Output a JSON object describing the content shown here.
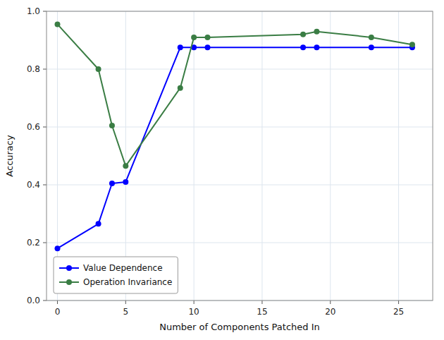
{
  "chart_data": {
    "type": "line",
    "xlabel": "Number of Components Patched In",
    "ylabel": "Accuracy",
    "x": [
      0,
      3,
      4,
      5,
      9,
      10,
      11,
      18,
      19,
      23,
      26
    ],
    "series": [
      {
        "name": "Value Dependence",
        "color": "#0000ff",
        "marker": "circle",
        "values": [
          0.18,
          0.265,
          0.405,
          0.41,
          0.875,
          0.875,
          0.875,
          0.875,
          0.875,
          0.875,
          0.875
        ]
      },
      {
        "name": "Operation Invariance",
        "color": "#3a7d44",
        "marker": "circle",
        "values": [
          0.955,
          0.8,
          0.605,
          0.465,
          0.735,
          0.91,
          0.91,
          0.92,
          0.93,
          0.91,
          0.885
        ]
      }
    ],
    "xlim": [
      -0.8,
      27.5
    ],
    "ylim": [
      0.0,
      1.0
    ],
    "xticks": [
      0,
      5,
      10,
      15,
      20,
      25
    ],
    "yticks": [
      {
        "value": 0.0,
        "label": "0.0"
      },
      {
        "value": 0.2,
        "label": "0.2"
      },
      {
        "value": 0.4,
        "label": "0.4"
      },
      {
        "value": 0.6,
        "label": "0.6"
      },
      {
        "value": 0.8,
        "label": "0.8"
      },
      {
        "value": 1.0,
        "label": "1.0"
      }
    ],
    "grid": true,
    "legend": "lower left"
  }
}
